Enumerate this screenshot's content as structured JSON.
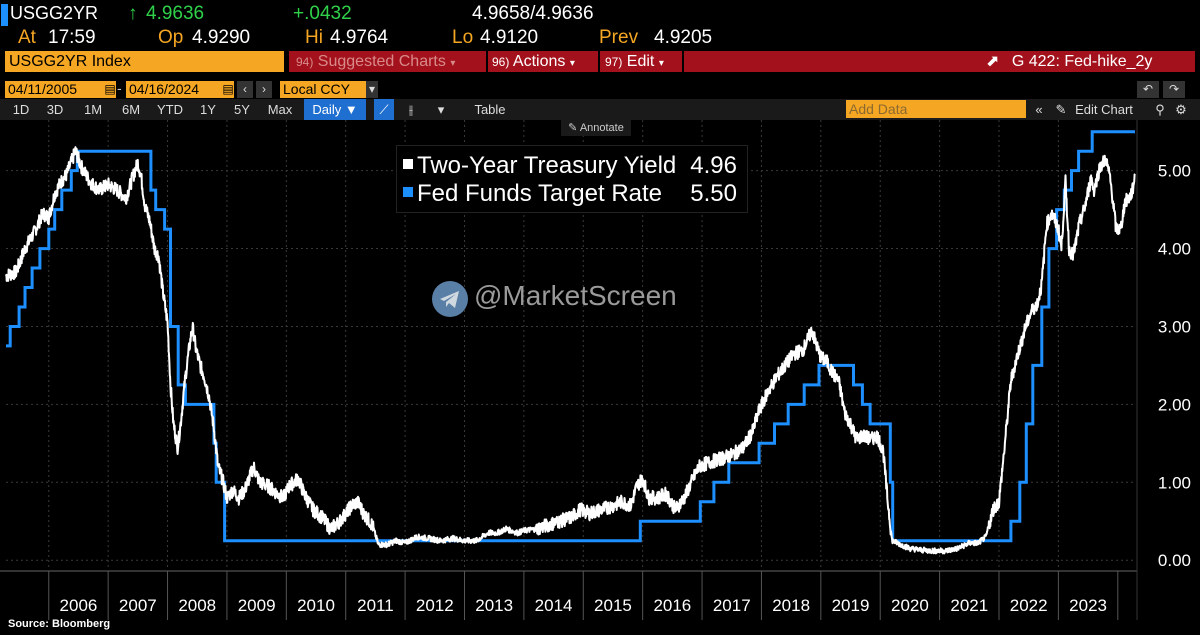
{
  "header": {
    "ticker": "USGG2YR",
    "last_arrow": "↑",
    "last": "4.9636",
    "change": "+.0432",
    "bid_ask": "4.9658/4.9636",
    "at_label": "At",
    "at_value": "17:59",
    "op_label": "Op",
    "op_value": "4.9290",
    "hi_label": "Hi",
    "hi_value": "4.9764",
    "lo_label": "Lo",
    "lo_value": "4.9120",
    "prev_label": "Prev",
    "prev_value": "4.9205"
  },
  "toolbar": {
    "index_name": "USGG2YR Index",
    "menu1_num": "94)",
    "menu1": "Suggested Charts",
    "menu2_num": "96)",
    "menu2": "Actions",
    "menu3_num": "97)",
    "menu3": "Edit",
    "chart_id": "G 422: Fed-hike_2y",
    "date_from": "04/11/2005",
    "date_to": "04/16/2024",
    "currency": "Local CCY",
    "ranges": [
      "1D",
      "3D",
      "1M",
      "6M",
      "YTD",
      "1Y",
      "5Y",
      "Max"
    ],
    "frequency": "Daily ▼",
    "table_label": "Table",
    "add_data_placeholder": "Add Data",
    "edit_chart": "Edit Chart",
    "annotate": "Annotate"
  },
  "watermark": "@MarketScreen",
  "source": "Source: Bloomberg",
  "colors": {
    "yield": "#ffffff",
    "fed": "#1e8fff",
    "orange": "#f5a623",
    "red": "#a3121c"
  },
  "chart_data": {
    "type": "line",
    "title": "",
    "ylim": [
      -0.1,
      5.65
    ],
    "xlim": [
      2005.28,
      2024.29
    ],
    "y_ticks": [
      0.0,
      1.0,
      2.0,
      3.0,
      4.0,
      5.0
    ],
    "y_tick_labels": [
      "0.00",
      "1.00",
      "2.00",
      "3.00",
      "4.00",
      "5.00"
    ],
    "x_tick_labels": [
      "2006",
      "2007",
      "2008",
      "2009",
      "2010",
      "2011",
      "2012",
      "2013",
      "2014",
      "2015",
      "2016",
      "2017",
      "2018",
      "2019",
      "2020",
      "2021",
      "2022",
      "2023"
    ],
    "legend_position": "top-center",
    "series": [
      {
        "name": "Two-Year Treasury Yield",
        "last_value": "4.96",
        "color": "#ffffff",
        "points": [
          [
            2005.28,
            3.65
          ],
          [
            2005.45,
            3.7
          ],
          [
            2005.6,
            4.0
          ],
          [
            2005.75,
            4.2
          ],
          [
            2005.9,
            4.45
          ],
          [
            2006.0,
            4.4
          ],
          [
            2006.1,
            4.7
          ],
          [
            2006.2,
            4.85
          ],
          [
            2006.3,
            4.95
          ],
          [
            2006.45,
            5.25
          ],
          [
            2006.55,
            5.05
          ],
          [
            2006.7,
            4.85
          ],
          [
            2006.85,
            4.75
          ],
          [
            2007.0,
            4.82
          ],
          [
            2007.15,
            4.75
          ],
          [
            2007.3,
            4.65
          ],
          [
            2007.45,
            5.0
          ],
          [
            2007.5,
            5.1
          ],
          [
            2007.55,
            4.95
          ],
          [
            2007.62,
            4.55
          ],
          [
            2007.7,
            4.35
          ],
          [
            2007.78,
            4.0
          ],
          [
            2007.85,
            3.9
          ],
          [
            2007.92,
            3.45
          ],
          [
            2008.0,
            3.05
          ],
          [
            2008.05,
            2.25
          ],
          [
            2008.1,
            1.75
          ],
          [
            2008.17,
            1.45
          ],
          [
            2008.22,
            1.75
          ],
          [
            2008.3,
            2.35
          ],
          [
            2008.37,
            2.75
          ],
          [
            2008.42,
            3.0
          ],
          [
            2008.48,
            2.7
          ],
          [
            2008.55,
            2.5
          ],
          [
            2008.62,
            2.35
          ],
          [
            2008.7,
            2.1
          ],
          [
            2008.78,
            1.7
          ],
          [
            2008.85,
            1.2
          ],
          [
            2008.92,
            1.05
          ],
          [
            2009.0,
            0.8
          ],
          [
            2009.1,
            0.9
          ],
          [
            2009.2,
            0.8
          ],
          [
            2009.3,
            0.9
          ],
          [
            2009.45,
            1.2
          ],
          [
            2009.55,
            1.0
          ],
          [
            2009.7,
            0.95
          ],
          [
            2009.85,
            0.85
          ],
          [
            2009.95,
            0.8
          ],
          [
            2010.05,
            0.95
          ],
          [
            2010.2,
            1.05
          ],
          [
            2010.3,
            0.85
          ],
          [
            2010.45,
            0.65
          ],
          [
            2010.6,
            0.55
          ],
          [
            2010.75,
            0.4
          ],
          [
            2010.9,
            0.5
          ],
          [
            2011.0,
            0.6
          ],
          [
            2011.1,
            0.7
          ],
          [
            2011.2,
            0.75
          ],
          [
            2011.3,
            0.6
          ],
          [
            2011.45,
            0.45
          ],
          [
            2011.55,
            0.2
          ],
          [
            2011.7,
            0.2
          ],
          [
            2011.85,
            0.25
          ],
          [
            2012.0,
            0.22
          ],
          [
            2012.2,
            0.3
          ],
          [
            2012.4,
            0.28
          ],
          [
            2012.6,
            0.25
          ],
          [
            2012.8,
            0.28
          ],
          [
            2013.0,
            0.25
          ],
          [
            2013.2,
            0.25
          ],
          [
            2013.4,
            0.35
          ],
          [
            2013.55,
            0.35
          ],
          [
            2013.7,
            0.4
          ],
          [
            2013.9,
            0.35
          ],
          [
            2014.0,
            0.38
          ],
          [
            2014.2,
            0.4
          ],
          [
            2014.4,
            0.45
          ],
          [
            2014.6,
            0.5
          ],
          [
            2014.8,
            0.55
          ],
          [
            2014.95,
            0.65
          ],
          [
            2015.1,
            0.6
          ],
          [
            2015.3,
            0.65
          ],
          [
            2015.5,
            0.7
          ],
          [
            2015.65,
            0.75
          ],
          [
            2015.8,
            0.7
          ],
          [
            2015.9,
            0.95
          ],
          [
            2016.0,
            1.05
          ],
          [
            2016.1,
            0.8
          ],
          [
            2016.25,
            0.8
          ],
          [
            2016.4,
            0.85
          ],
          [
            2016.55,
            0.65
          ],
          [
            2016.7,
            0.8
          ],
          [
            2016.85,
            1.05
          ],
          [
            2016.95,
            1.2
          ],
          [
            2017.1,
            1.25
          ],
          [
            2017.3,
            1.3
          ],
          [
            2017.5,
            1.35
          ],
          [
            2017.7,
            1.45
          ],
          [
            2017.85,
            1.65
          ],
          [
            2017.95,
            1.9
          ],
          [
            2018.1,
            2.15
          ],
          [
            2018.25,
            2.35
          ],
          [
            2018.4,
            2.5
          ],
          [
            2018.55,
            2.65
          ],
          [
            2018.7,
            2.7
          ],
          [
            2018.85,
            2.95
          ],
          [
            2018.93,
            2.75
          ],
          [
            2019.0,
            2.6
          ],
          [
            2019.1,
            2.55
          ],
          [
            2019.2,
            2.4
          ],
          [
            2019.3,
            2.3
          ],
          [
            2019.4,
            1.9
          ],
          [
            2019.5,
            1.75
          ],
          [
            2019.6,
            1.55
          ],
          [
            2019.7,
            1.6
          ],
          [
            2019.85,
            1.55
          ],
          [
            2019.95,
            1.6
          ],
          [
            2020.05,
            1.4
          ],
          [
            2020.12,
            0.8
          ],
          [
            2020.2,
            0.25
          ],
          [
            2020.35,
            0.2
          ],
          [
            2020.5,
            0.15
          ],
          [
            2020.7,
            0.13
          ],
          [
            2020.9,
            0.12
          ],
          [
            2021.1,
            0.12
          ],
          [
            2021.3,
            0.15
          ],
          [
            2021.5,
            0.22
          ],
          [
            2021.65,
            0.22
          ],
          [
            2021.78,
            0.3
          ],
          [
            2021.9,
            0.65
          ],
          [
            2022.0,
            0.75
          ],
          [
            2022.1,
            1.5
          ],
          [
            2022.2,
            2.3
          ],
          [
            2022.3,
            2.6
          ],
          [
            2022.45,
            3.0
          ],
          [
            2022.55,
            3.2
          ],
          [
            2022.65,
            3.3
          ],
          [
            2022.72,
            3.55
          ],
          [
            2022.8,
            4.3
          ],
          [
            2022.88,
            4.45
          ],
          [
            2022.95,
            4.35
          ],
          [
            2023.0,
            4.25
          ],
          [
            2023.05,
            4.0
          ],
          [
            2023.12,
            4.85
          ],
          [
            2023.18,
            4.0
          ],
          [
            2023.25,
            3.9
          ],
          [
            2023.35,
            4.3
          ],
          [
            2023.45,
            4.55
          ],
          [
            2023.55,
            4.9
          ],
          [
            2023.6,
            4.75
          ],
          [
            2023.7,
            5.05
          ],
          [
            2023.8,
            5.15
          ],
          [
            2023.87,
            4.9
          ],
          [
            2023.92,
            4.6
          ],
          [
            2023.97,
            4.25
          ],
          [
            2024.05,
            4.25
          ],
          [
            2024.12,
            4.6
          ],
          [
            2024.2,
            4.65
          ],
          [
            2024.25,
            4.75
          ],
          [
            2024.29,
            4.96
          ]
        ]
      },
      {
        "name": "Fed Funds Target Rate",
        "last_value": "5.50",
        "color": "#1e8fff",
        "points": [
          [
            2005.28,
            2.75
          ],
          [
            2005.35,
            3.0
          ],
          [
            2005.5,
            3.25
          ],
          [
            2005.6,
            3.5
          ],
          [
            2005.72,
            3.75
          ],
          [
            2005.85,
            4.0
          ],
          [
            2006.0,
            4.25
          ],
          [
            2006.1,
            4.5
          ],
          [
            2006.22,
            4.75
          ],
          [
            2006.38,
            5.0
          ],
          [
            2006.48,
            5.25
          ],
          [
            2007.7,
            5.25
          ],
          [
            2007.72,
            4.75
          ],
          [
            2007.8,
            4.5
          ],
          [
            2007.95,
            4.25
          ],
          [
            2008.05,
            3.0
          ],
          [
            2008.18,
            2.25
          ],
          [
            2008.3,
            2.0
          ],
          [
            2008.78,
            1.5
          ],
          [
            2008.82,
            1.0
          ],
          [
            2008.96,
            0.25
          ],
          [
            2015.95,
            0.25
          ],
          [
            2015.96,
            0.5
          ],
          [
            2016.96,
            0.5
          ],
          [
            2016.97,
            0.75
          ],
          [
            2017.2,
            1.0
          ],
          [
            2017.45,
            1.25
          ],
          [
            2017.96,
            1.5
          ],
          [
            2018.22,
            1.75
          ],
          [
            2018.45,
            2.0
          ],
          [
            2018.72,
            2.25
          ],
          [
            2018.97,
            2.5
          ],
          [
            2019.55,
            2.25
          ],
          [
            2019.7,
            2.0
          ],
          [
            2019.83,
            1.75
          ],
          [
            2020.17,
            1.0
          ],
          [
            2020.21,
            0.25
          ],
          [
            2022.2,
            0.5
          ],
          [
            2022.35,
            1.0
          ],
          [
            2022.46,
            1.75
          ],
          [
            2022.57,
            2.5
          ],
          [
            2022.72,
            3.25
          ],
          [
            2022.84,
            4.0
          ],
          [
            2022.97,
            4.5
          ],
          [
            2023.1,
            4.75
          ],
          [
            2023.22,
            5.0
          ],
          [
            2023.34,
            5.25
          ],
          [
            2023.57,
            5.5
          ],
          [
            2024.29,
            5.5
          ]
        ]
      }
    ]
  }
}
